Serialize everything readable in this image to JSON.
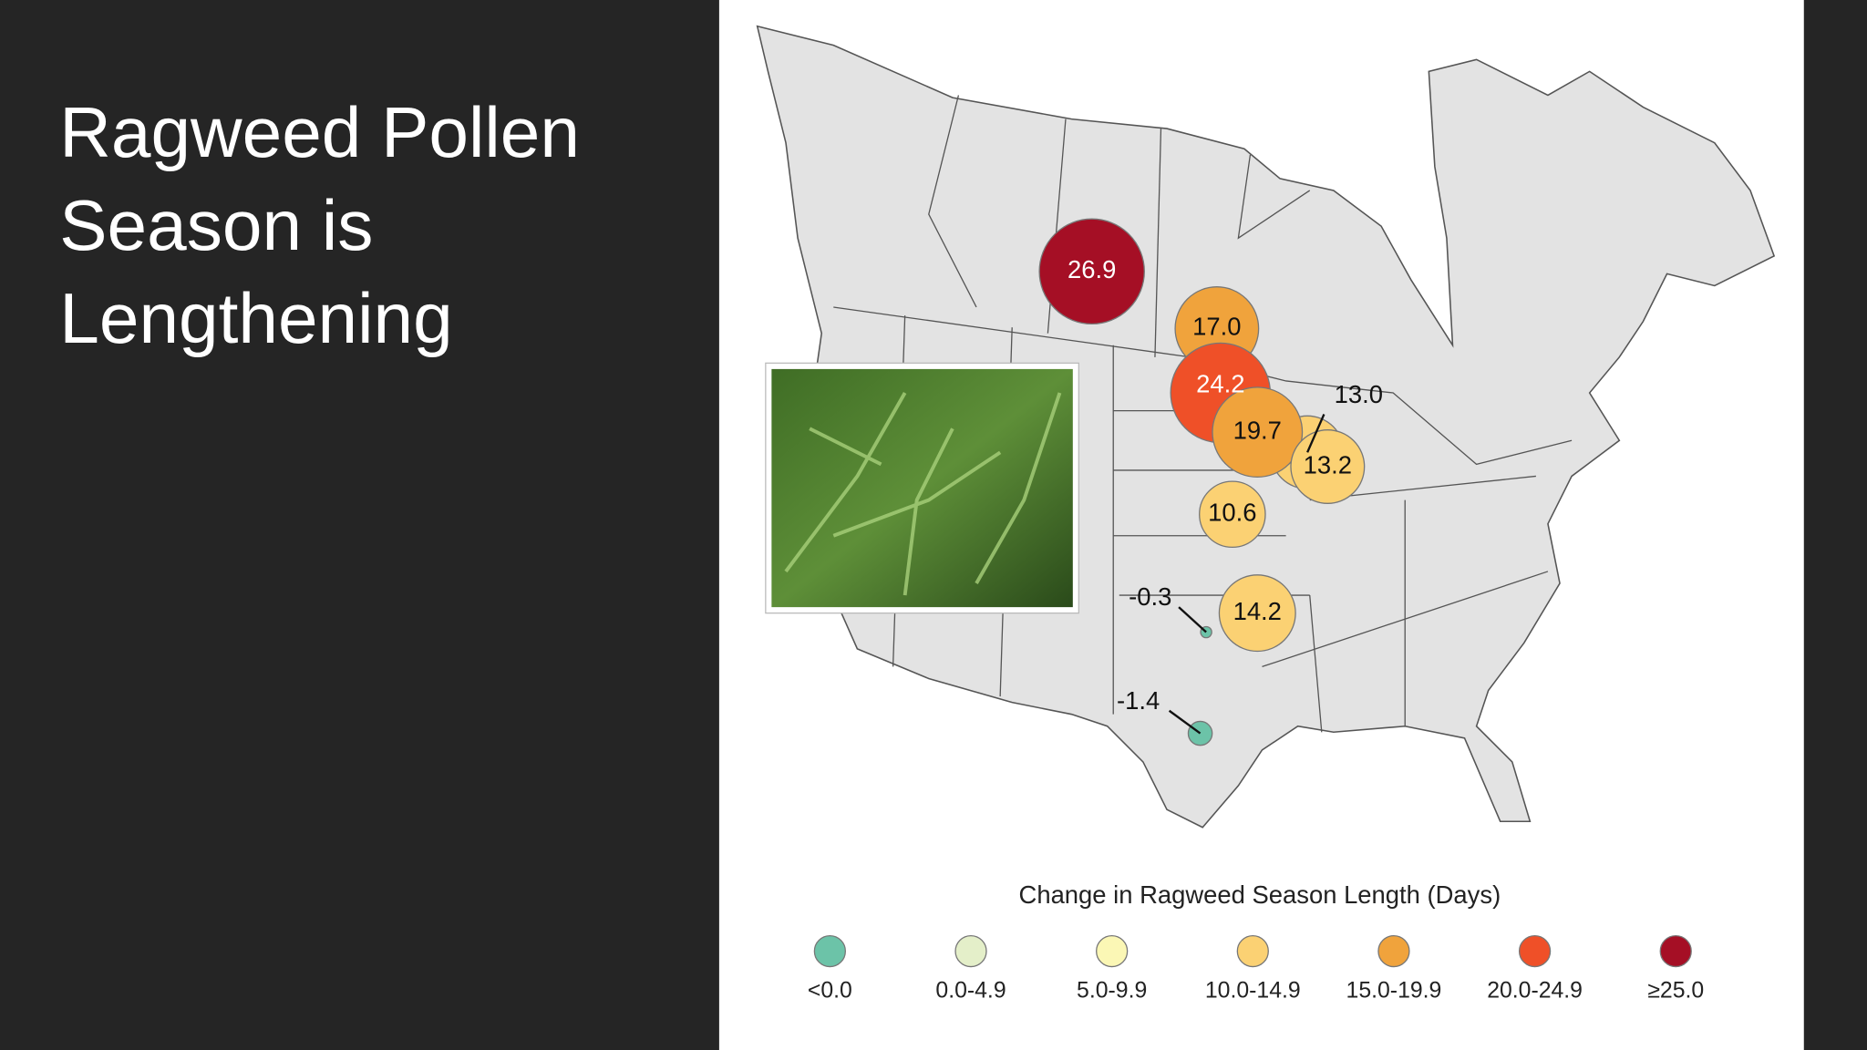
{
  "title": [
    "Ragweed Pollen",
    "Season is",
    "Lengthening"
  ],
  "map": {
    "points": [
      {
        "label": "26.9",
        "value": 26.9,
        "color": "#a50f25"
      },
      {
        "label": "17.0",
        "value": 17.0,
        "color": "#f0a33c"
      },
      {
        "label": "24.2",
        "value": 24.2,
        "color": "#ef5028"
      },
      {
        "label": "13.0",
        "value": 13.0,
        "color": "#fbd173"
      },
      {
        "label": "19.7",
        "value": 19.7,
        "color": "#f0a33c"
      },
      {
        "label": "13.2",
        "value": 13.2,
        "color": "#fbd173"
      },
      {
        "label": "10.6",
        "value": 10.6,
        "color": "#fbd173"
      },
      {
        "label": "14.2",
        "value": 14.2,
        "color": "#fbd173"
      },
      {
        "label": "-0.3",
        "value": -0.3,
        "color": "#6cc3a8"
      },
      {
        "label": "-1.4",
        "value": -1.4,
        "color": "#6cc3a8"
      }
    ],
    "legend_title": "Change in Ragweed Season Length (Days)",
    "legend": [
      {
        "label": "<0.0",
        "color": "#6cc3a8"
      },
      {
        "label": "0.0-4.9",
        "color": "#e4efc9"
      },
      {
        "label": "5.0-9.9",
        "color": "#fbf7b5"
      },
      {
        "label": "10.0-14.9",
        "color": "#fbd173"
      },
      {
        "label": "15.0-19.9",
        "color": "#f0a33c"
      },
      {
        "label": "20.0-24.9",
        "color": "#ef5028"
      },
      {
        "label": "≥25.0",
        "color": "#a50f25"
      }
    ]
  }
}
